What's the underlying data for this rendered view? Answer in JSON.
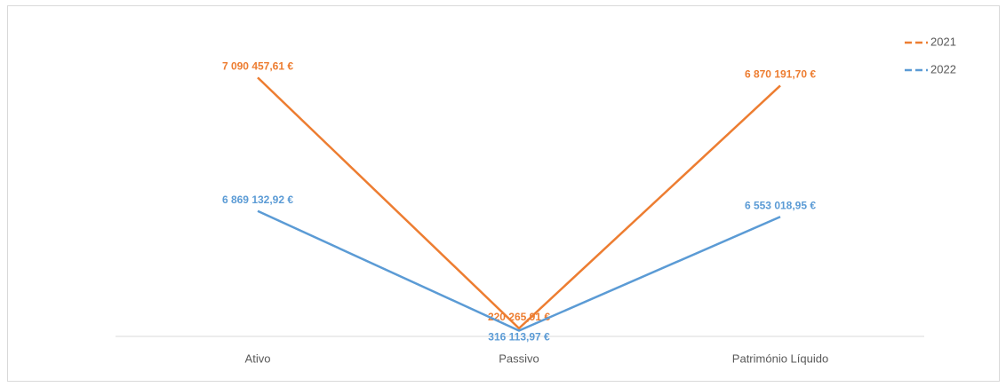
{
  "chart_data": {
    "type": "line",
    "categories": [
      "Ativo",
      "Passivo",
      "Património Líquido"
    ],
    "series": [
      {
        "name": "2021",
        "color": "#ed7d31",
        "values": [
          7090457.61,
          220265.91,
          6870191.7
        ],
        "value_labels": [
          "7 090 457,61 €",
          "220 265,91 €",
          "6 870 191,70 €"
        ]
      },
      {
        "name": "2022",
        "color": "#5b9bd5",
        "axis": "y2",
        "values": [
          6869132.92,
          316113.97,
          6553018.95
        ],
        "value_labels": [
          "6 869 132,92 €",
          "316 113,97 €",
          "6 553 018,95 €"
        ]
      }
    ],
    "ylim": [
      0,
      8000000
    ],
    "y2lim": [
      0,
      16000000
    ],
    "legend": "top-right"
  }
}
